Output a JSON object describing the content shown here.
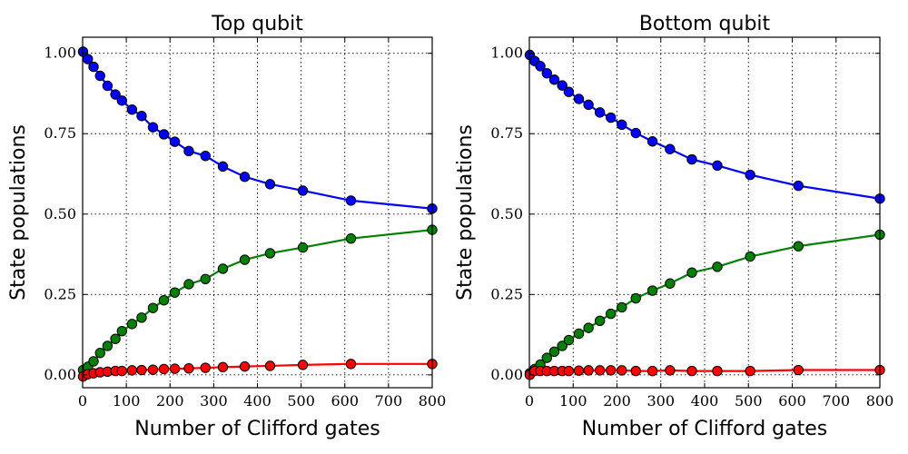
{
  "chart_data": [
    {
      "type": "line",
      "title": "Top qubit",
      "xlabel": "Number of Clifford gates",
      "ylabel": "State populations",
      "xlim": [
        0,
        800
      ],
      "ylim": [
        -0.04,
        1.05
      ],
      "xticks": [
        0,
        100,
        200,
        300,
        400,
        500,
        600,
        700,
        800
      ],
      "yticks": [
        0.0,
        0.25,
        0.5,
        0.75,
        1.0
      ],
      "ytick_labels": [
        "0.00",
        "0.25",
        "0.50",
        "0.75",
        "1.00"
      ],
      "grid": true,
      "x": [
        1,
        12,
        25,
        40,
        57,
        75,
        90,
        113,
        135,
        161,
        186,
        211,
        243,
        281,
        321,
        371,
        429,
        504,
        614,
        800
      ],
      "series": [
        {
          "color": "#0000ff",
          "values": [
            1.005,
            0.982,
            0.958,
            0.93,
            0.899,
            0.872,
            0.853,
            0.825,
            0.805,
            0.77,
            0.748,
            0.725,
            0.696,
            0.681,
            0.648,
            0.616,
            0.593,
            0.573,
            0.542,
            0.517
          ]
        },
        {
          "color": "#008000",
          "values": [
            0.015,
            0.025,
            0.042,
            0.068,
            0.09,
            0.112,
            0.136,
            0.158,
            0.178,
            0.208,
            0.232,
            0.256,
            0.282,
            0.298,
            0.33,
            0.358,
            0.378,
            0.396,
            0.424,
            0.451
          ]
        },
        {
          "color": "#ff0000",
          "values": [
            -0.005,
            0.002,
            0.005,
            0.008,
            0.01,
            0.012,
            0.012,
            0.014,
            0.015,
            0.016,
            0.018,
            0.019,
            0.02,
            0.022,
            0.024,
            0.026,
            0.028,
            0.031,
            0.034,
            0.034
          ]
        }
      ]
    },
    {
      "type": "line",
      "title": "Bottom qubit",
      "xlabel": "Number of Clifford gates",
      "ylabel": "State populations",
      "xlim": [
        0,
        800
      ],
      "ylim": [
        -0.04,
        1.05
      ],
      "xticks": [
        0,
        100,
        200,
        300,
        400,
        500,
        600,
        700,
        800
      ],
      "yticks": [
        0.0,
        0.25,
        0.5,
        0.75,
        1.0
      ],
      "ytick_labels": [
        "0.00",
        "0.25",
        "0.50",
        "0.75",
        "1.00"
      ],
      "grid": true,
      "x": [
        1,
        12,
        25,
        40,
        57,
        75,
        90,
        113,
        135,
        161,
        186,
        211,
        243,
        281,
        321,
        371,
        429,
        504,
        614,
        800
      ],
      "series": [
        {
          "color": "#0000ff",
          "values": [
            0.995,
            0.976,
            0.96,
            0.938,
            0.918,
            0.9,
            0.88,
            0.858,
            0.84,
            0.816,
            0.8,
            0.778,
            0.752,
            0.726,
            0.702,
            0.67,
            0.651,
            0.622,
            0.588,
            0.548
          ]
        },
        {
          "color": "#008000",
          "values": [
            0.005,
            0.018,
            0.032,
            0.053,
            0.072,
            0.09,
            0.108,
            0.128,
            0.146,
            0.168,
            0.19,
            0.21,
            0.238,
            0.262,
            0.284,
            0.318,
            0.336,
            0.368,
            0.4,
            0.436
          ]
        },
        {
          "color": "#ff0000",
          "values": [
            0.0,
            0.012,
            0.012,
            0.012,
            0.012,
            0.012,
            0.012,
            0.013,
            0.014,
            0.014,
            0.014,
            0.014,
            0.012,
            0.012,
            0.014,
            0.012,
            0.012,
            0.012,
            0.015,
            0.015
          ]
        }
      ]
    }
  ]
}
